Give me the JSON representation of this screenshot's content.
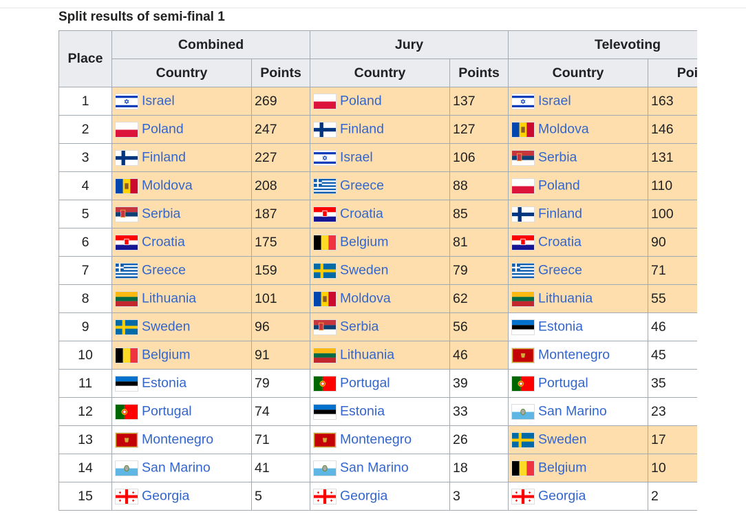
{
  "caption": "Split results of semi-final 1",
  "header": {
    "place": "Place",
    "groups": [
      "Combined",
      "Jury",
      "Televoting"
    ],
    "columns": [
      "Country",
      "Points",
      "Country",
      "Points",
      "Country",
      "Points"
    ]
  },
  "rows": [
    [
      1,
      "Israel",
      269,
      "Poland",
      137,
      "Israel",
      163
    ],
    [
      2,
      "Poland",
      247,
      "Finland",
      127,
      "Moldova",
      146
    ],
    [
      3,
      "Finland",
      227,
      "Israel",
      106,
      "Serbia",
      131
    ],
    [
      4,
      "Moldova",
      208,
      "Greece",
      88,
      "Poland",
      110
    ],
    [
      5,
      "Serbia",
      187,
      "Croatia",
      85,
      "Finland",
      100
    ],
    [
      6,
      "Croatia",
      175,
      "Belgium",
      81,
      "Croatia",
      90
    ],
    [
      7,
      "Greece",
      159,
      "Sweden",
      79,
      "Greece",
      71
    ],
    [
      8,
      "Lithuania",
      101,
      "Moldova",
      62,
      "Lithuania",
      55
    ],
    [
      9,
      "Sweden",
      96,
      "Serbia",
      56,
      "Estonia",
      46
    ],
    [
      10,
      "Belgium",
      91,
      "Lithuania",
      46,
      "Montenegro",
      45
    ],
    [
      11,
      "Estonia",
      79,
      "Portugal",
      39,
      "Portugal",
      35
    ],
    [
      12,
      "Portugal",
      74,
      "Estonia",
      33,
      "San Marino",
      23
    ],
    [
      13,
      "Montenegro",
      71,
      "Montenegro",
      26,
      "Sweden",
      17
    ],
    [
      14,
      "San Marino",
      41,
      "San Marino",
      18,
      "Belgium",
      10
    ],
    [
      15,
      "Georgia",
      5,
      "Georgia",
      3,
      "Georgia",
      2
    ]
  ]
}
